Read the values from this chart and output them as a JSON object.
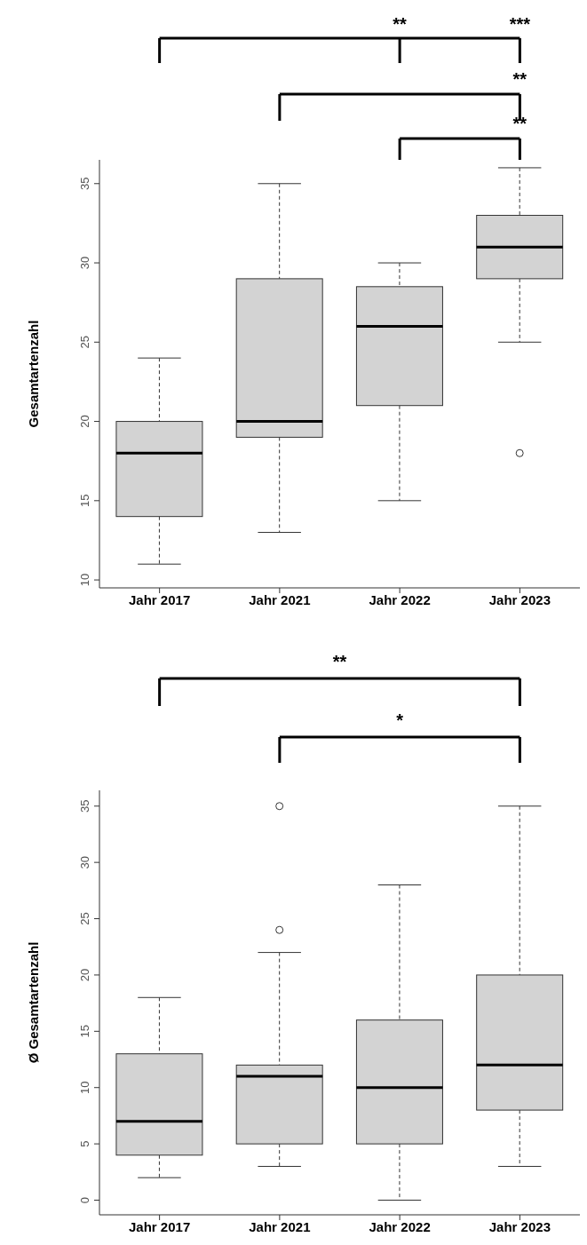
{
  "chart_data": [
    {
      "type": "box",
      "ylabel": "Gesamtartenzahl",
      "categories": [
        "Jahr 2017",
        "Jahr 2021",
        "Jahr 2022",
        "Jahr 2023"
      ],
      "color": "#d3d3d3",
      "ylim": [
        9.5,
        36.5
      ],
      "yticks": [
        10,
        15,
        20,
        25,
        30,
        35
      ],
      "annotations": [
        "**",
        "***",
        "**",
        "**"
      ],
      "boxes": [
        {
          "low": 11,
          "q1": 14,
          "median": 18,
          "q3": 20,
          "high": 24
        },
        {
          "low": 13,
          "q1": 19,
          "median": 20,
          "q3": 29,
          "high": 35
        },
        {
          "low": 15,
          "q1": 21,
          "median": 26,
          "q3": 28.5,
          "high": 30
        },
        {
          "low": 25,
          "q1": 29,
          "median": 31,
          "q3": 33,
          "high": 36,
          "outliers": [
            18
          ]
        }
      ]
    },
    {
      "type": "box",
      "ylabel": "Ø Gesamtartenzahl",
      "categories": [
        "Jahr 2017",
        "Jahr 2021",
        "Jahr 2022",
        "Jahr 2023"
      ],
      "color": "#d3d3d3",
      "ylim": [
        -1.3,
        36.4
      ],
      "yticks": [
        0,
        5,
        10,
        15,
        20,
        25,
        30,
        35
      ],
      "annotations": [
        "**",
        "*"
      ],
      "boxes": [
        {
          "low": 2,
          "q1": 4,
          "median": 7,
          "q3": 13,
          "high": 18
        },
        {
          "low": 3,
          "q1": 5,
          "median": 11,
          "q3": 12,
          "high": 22,
          "outliers": [
            24,
            35
          ]
        },
        {
          "low": 0,
          "q1": 5,
          "median": 10,
          "q3": 16,
          "high": 28
        },
        {
          "low": 3,
          "q1": 8,
          "median": 12,
          "q3": 20,
          "high": 35
        }
      ]
    }
  ]
}
